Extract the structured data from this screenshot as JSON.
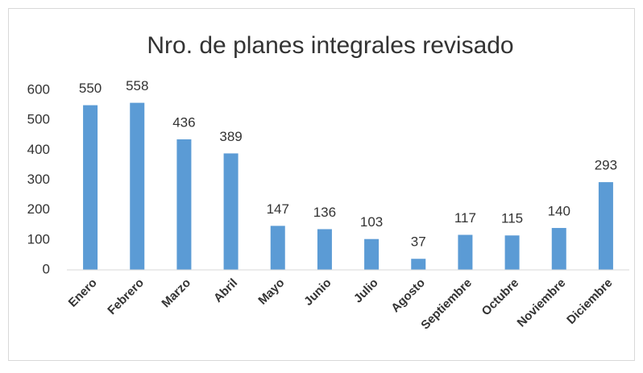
{
  "chart_data": {
    "type": "bar",
    "title": "Nro. de planes integrales revisado",
    "categories": [
      "Enero",
      "Febrero",
      "Marzo",
      "Abril",
      "Mayo",
      "Junio",
      "Julio",
      "Agosto",
      "Septiembre",
      "Octubre",
      "Noviembre",
      "Diciembre"
    ],
    "values": [
      550,
      558,
      436,
      389,
      147,
      136,
      103,
      37,
      117,
      115,
      140,
      293
    ],
    "color": "#5b9bd5",
    "ylim": [
      0,
      600
    ],
    "yticks": [
      0,
      100,
      200,
      300,
      400,
      500,
      600
    ],
    "grid": false
  }
}
